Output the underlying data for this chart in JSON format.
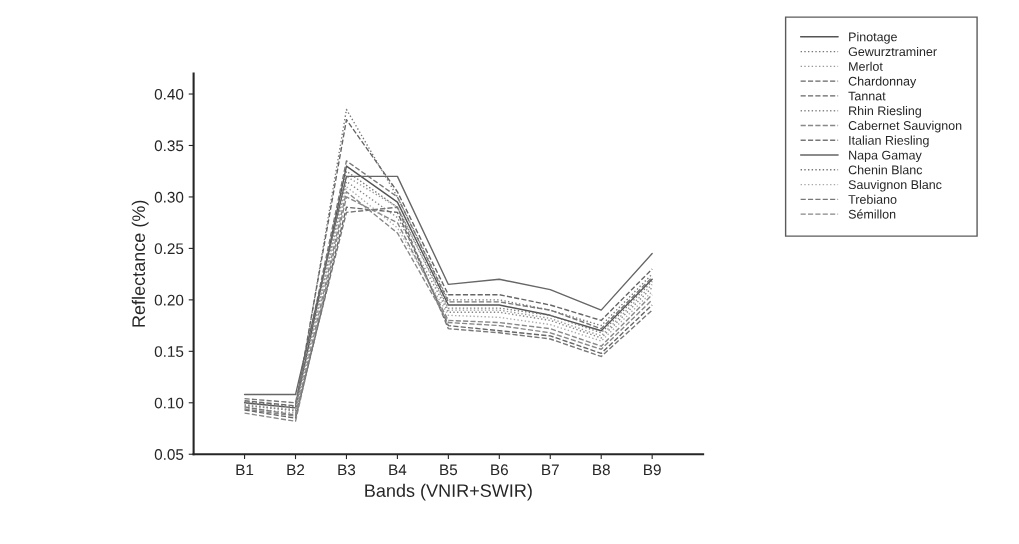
{
  "chart_data": {
    "type": "line",
    "xlabel": "Bands (VNIR+SWIR)",
    "ylabel": "Reflectance (%)",
    "categories": [
      "B1",
      "B2",
      "B3",
      "B4",
      "B5",
      "B6",
      "B7",
      "B8",
      "B9"
    ],
    "ylim": [
      0.05,
      0.42
    ],
    "yticks": [
      0.05,
      {
        "value": 0.1,
        "label": "0.10"
      },
      0.15,
      {
        "value": 0.2,
        "label": "0.20"
      },
      0.25,
      {
        "value": 0.3,
        "label": "0.30"
      },
      0.35,
      {
        "value": 0.4,
        "label": "0.40"
      }
    ],
    "grid": false,
    "legend": "top right",
    "marker": "none",
    "series": [
      {
        "name": "Pinotage",
        "color": "#555555",
        "line_style": "solid",
        "values": [
          0.1,
          0.095,
          0.33,
          0.295,
          0.195,
          0.195,
          0.185,
          0.17,
          0.22
        ]
      },
      {
        "name": "Gewurztraminer",
        "color": "#777777",
        "line_style": "dotted",
        "values": [
          0.098,
          0.092,
          0.385,
          0.3,
          0.2,
          0.2,
          0.19,
          0.175,
          0.225
        ]
      },
      {
        "name": "Merlot",
        "color": "#999999",
        "line_style": "dotted",
        "values": [
          0.095,
          0.09,
          0.32,
          0.29,
          0.19,
          0.19,
          0.182,
          0.165,
          0.215
        ]
      },
      {
        "name": "Chardonnay",
        "color": "#666666",
        "line_style": "dashed",
        "values": [
          0.102,
          0.097,
          0.375,
          0.305,
          0.205,
          0.205,
          0.195,
          0.18,
          0.23
        ]
      },
      {
        "name": "Tannat",
        "color": "#666666",
        "line_style": "dashed",
        "values": [
          0.093,
          0.085,
          0.29,
          0.285,
          0.175,
          0.17,
          0.165,
          0.148,
          0.195
        ]
      },
      {
        "name": "Rhin Riesling",
        "color": "#888888",
        "line_style": "dotted",
        "values": [
          0.097,
          0.093,
          0.315,
          0.28,
          0.188,
          0.188,
          0.18,
          0.163,
          0.212
        ]
      },
      {
        "name": "Cabernet Sauvignon",
        "color": "#888888",
        "line_style": "dashed",
        "values": [
          0.09,
          0.082,
          0.3,
          0.275,
          0.18,
          0.178,
          0.172,
          0.155,
          0.205
        ]
      },
      {
        "name": "Italian Riesling",
        "color": "#777777",
        "line_style": "dashed",
        "values": [
          0.104,
          0.1,
          0.335,
          0.3,
          0.198,
          0.198,
          0.19,
          0.172,
          0.222
        ]
      },
      {
        "name": "Napa Gamay",
        "color": "#666666",
        "line_style": "solid",
        "values": [
          0.108,
          0.108,
          0.32,
          0.32,
          0.215,
          0.22,
          0.21,
          0.19,
          0.245
        ]
      },
      {
        "name": "Chenin Blanc",
        "color": "#777777",
        "line_style": "dotted",
        "values": [
          0.101,
          0.096,
          0.325,
          0.29,
          0.192,
          0.192,
          0.185,
          0.168,
          0.218
        ]
      },
      {
        "name": "Sauvignon Blanc",
        "color": "#aaaaaa",
        "line_style": "dotted",
        "values": [
          0.099,
          0.094,
          0.31,
          0.27,
          0.185,
          0.183,
          0.176,
          0.16,
          0.208
        ]
      },
      {
        "name": "Trebiano",
        "color": "#777777",
        "line_style": "dashed",
        "values": [
          0.096,
          0.088,
          0.285,
          0.29,
          0.172,
          0.168,
          0.162,
          0.145,
          0.19
        ]
      },
      {
        "name": "Sémillon",
        "color": "#888888",
        "line_style": "dashed",
        "values": [
          0.094,
          0.087,
          0.305,
          0.265,
          0.178,
          0.175,
          0.168,
          0.152,
          0.2
        ]
      }
    ]
  }
}
